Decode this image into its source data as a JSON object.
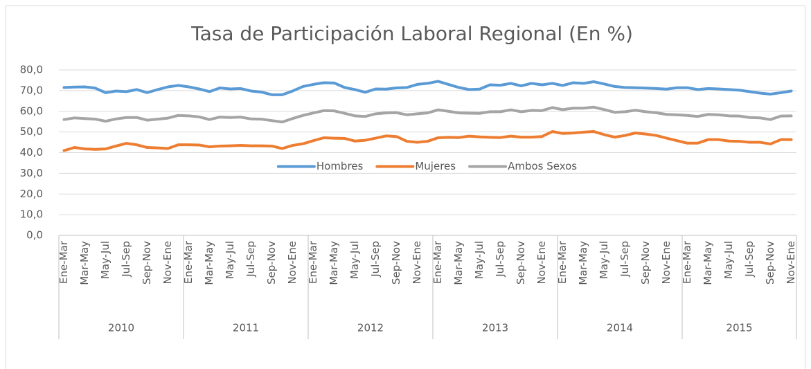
{
  "chart_data": {
    "type": "line",
    "title": "Tasa de Participación Laboral Regional (En %)",
    "categories": [
      "Ene-Mar",
      null,
      "Mar-May",
      null,
      "May-Jul",
      null,
      "Jul-Sep",
      null,
      "Sep-Nov",
      null,
      "Nov-Ene",
      null,
      "Ene-Mar",
      null,
      "Mar-May",
      null,
      "May-Jul",
      null,
      "Jul-Sep",
      null,
      "Sep-Nov",
      null,
      "Nov-Ene",
      null,
      "Ene-Mar",
      null,
      "Mar-May",
      null,
      "May-Jul",
      null,
      "Jul-Sep",
      null,
      "Sep-Nov",
      null,
      "Nov-Ene",
      null,
      "Ene-Mar",
      null,
      "Mar-May",
      null,
      "May-Jul",
      null,
      "Jul-Sep",
      null,
      "Sep-Nov",
      null,
      "Nov-Ene",
      null,
      "Ene-Mar",
      null,
      "Mar-May",
      null,
      "May-Jul",
      null,
      "Jul-Sep",
      null,
      "Sep-Nov",
      null,
      "Nov-Ene",
      null,
      "Ene-Mar",
      null,
      "Mar-May",
      null,
      "May-Jul",
      null,
      "Jul-Sep",
      null,
      "Sep-Nov",
      null,
      "Nov-Ene"
    ],
    "category_groups": [
      {
        "label": "2010",
        "count": 12
      },
      {
        "label": "2011",
        "count": 12
      },
      {
        "label": "2012",
        "count": 12
      },
      {
        "label": "2013",
        "count": 12
      },
      {
        "label": "2014",
        "count": 12
      },
      {
        "label": "2015",
        "count": 11
      }
    ],
    "series": [
      {
        "name": "Hombres",
        "color": "#5b9bd5",
        "values": [
          71.5,
          71.7,
          71.8,
          71.2,
          69.0,
          69.8,
          69.5,
          70.5,
          69.0,
          70.5,
          71.8,
          72.5,
          71.8,
          70.8,
          69.5,
          71.3,
          70.8,
          71.0,
          69.8,
          69.3,
          68.0,
          68.0,
          69.8,
          72.0,
          73.0,
          73.8,
          73.7,
          71.5,
          70.5,
          69.2,
          70.8,
          70.7,
          71.3,
          71.5,
          73.0,
          73.5,
          74.5,
          73.0,
          71.5,
          70.5,
          70.7,
          72.8,
          72.6,
          73.5,
          72.3,
          73.5,
          72.8,
          73.5,
          72.5,
          73.8,
          73.5,
          74.3,
          73.2,
          72.0,
          71.5,
          71.4,
          71.2,
          71.0,
          70.7,
          71.4,
          71.4,
          70.5,
          71.0,
          70.8,
          70.5,
          70.2,
          69.5,
          68.8,
          68.3,
          69.0,
          69.8
        ]
      },
      {
        "name": "Mujeres",
        "color": "#ed7d31",
        "values": [
          41.0,
          42.5,
          41.8,
          41.6,
          41.8,
          43.2,
          44.5,
          43.8,
          42.5,
          42.3,
          42.0,
          43.8,
          43.8,
          43.7,
          42.8,
          43.2,
          43.3,
          43.5,
          43.3,
          43.3,
          43.2,
          42.0,
          43.5,
          44.3,
          45.8,
          47.2,
          47.0,
          46.9,
          45.6,
          46.0,
          47.0,
          48.1,
          47.8,
          45.5,
          45.0,
          45.5,
          47.2,
          47.4,
          47.3,
          48.0,
          47.6,
          47.4,
          47.3,
          48.0,
          47.5,
          47.5,
          47.8,
          50.2,
          49.3,
          49.5,
          49.9,
          50.2,
          48.7,
          47.5,
          48.3,
          49.5,
          49.0,
          48.3,
          47.0,
          45.8,
          44.6,
          44.6,
          46.3,
          46.3,
          45.6,
          45.5,
          45.0,
          45.0,
          44.2,
          46.3,
          46.3
        ]
      },
      {
        "name": "Ambos Sexos",
        "color": "#a5a5a5",
        "values": [
          56.0,
          56.8,
          56.5,
          56.2,
          55.2,
          56.3,
          57.0,
          57.0,
          55.7,
          56.2,
          56.7,
          58.0,
          57.8,
          57.3,
          56.0,
          57.2,
          57.0,
          57.2,
          56.3,
          56.2,
          55.5,
          54.8,
          56.5,
          58.0,
          59.2,
          60.3,
          60.2,
          59.0,
          57.8,
          57.5,
          58.8,
          59.2,
          59.3,
          58.3,
          58.8,
          59.2,
          60.7,
          60.0,
          59.2,
          59.1,
          59.0,
          59.8,
          59.8,
          60.7,
          59.8,
          60.4,
          60.3,
          61.8,
          60.8,
          61.5,
          61.5,
          62.0,
          60.8,
          59.5,
          59.8,
          60.5,
          59.8,
          59.3,
          58.5,
          58.3,
          58.0,
          57.5,
          58.5,
          58.3,
          57.8,
          57.7,
          57.0,
          56.8,
          56.0,
          57.7,
          57.8
        ]
      }
    ],
    "ylim": [
      0,
      80
    ],
    "yticks": [
      {
        "value": 0,
        "label": "0,0"
      },
      {
        "value": 10,
        "label": "10,0"
      },
      {
        "value": 20,
        "label": "20,0"
      },
      {
        "value": 30,
        "label": "30,0"
      },
      {
        "value": 40,
        "label": "40,0"
      },
      {
        "value": 50,
        "label": "50,0"
      },
      {
        "value": 60,
        "label": "60,0"
      },
      {
        "value": 70,
        "label": "70,0"
      },
      {
        "value": 80,
        "label": "80,0"
      }
    ],
    "grid": true,
    "legend": "center"
  }
}
